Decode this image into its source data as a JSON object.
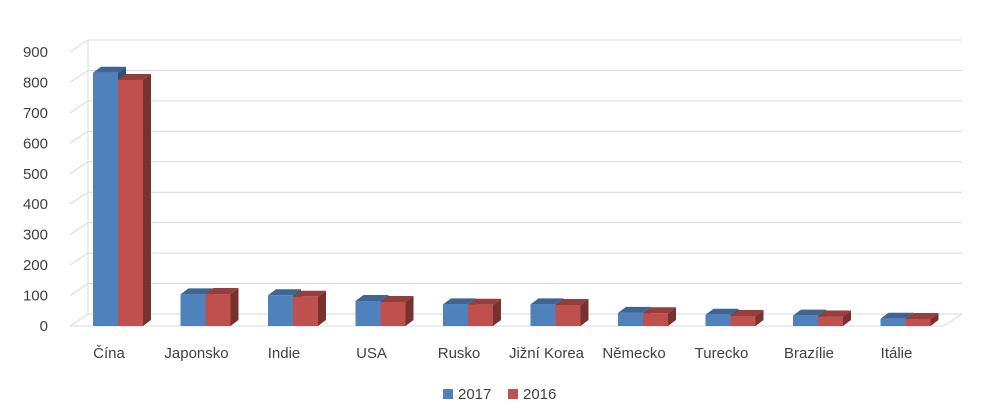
{
  "chart_data": {
    "type": "bar",
    "title": "",
    "xlabel": "",
    "ylabel": "",
    "ylim": [
      0,
      900
    ],
    "yticks": [
      0,
      100,
      200,
      300,
      400,
      500,
      600,
      700,
      800,
      900
    ],
    "grid": true,
    "legend_position": "bottom",
    "categories": [
      "Čína",
      "Japonsko",
      "Indie",
      "USA",
      "Rusko",
      "Jižní Korea",
      "Německo",
      "Turecko",
      "Brazílie",
      "Itálie"
    ],
    "series": [
      {
        "name": "2017",
        "color": "#4f81bd",
        "values": [
          832,
          104,
          101,
          82,
          71,
          71,
          43,
          37,
          34,
          24
        ]
      },
      {
        "name": "2016",
        "color": "#c0504d",
        "values": [
          808,
          105,
          96,
          79,
          70,
          69,
          42,
          33,
          31,
          23
        ]
      }
    ]
  }
}
